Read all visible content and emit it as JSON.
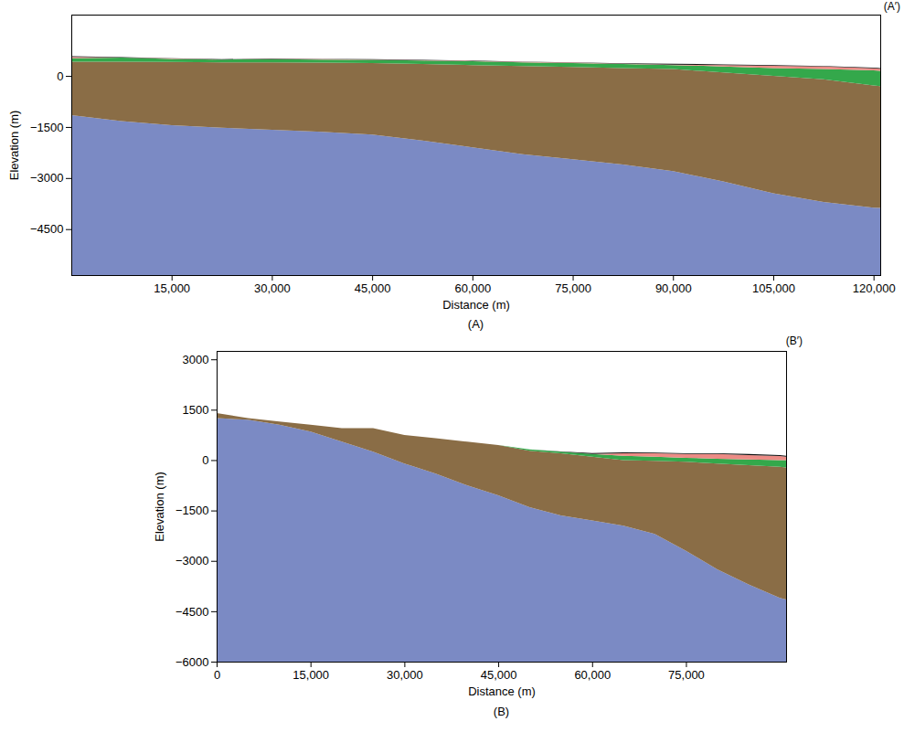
{
  "chart_data": [
    {
      "type": "area",
      "corner_label": "(A′)",
      "panel_label": "(A)",
      "x_label": "Distance (m)",
      "y_label": "Elevation (m)",
      "xlim": [
        0,
        121000
      ],
      "xticks": [
        {
          "value": 15000,
          "label": "15,000"
        },
        {
          "value": 30000,
          "label": "30,000"
        },
        {
          "value": 45000,
          "label": "45,000"
        },
        {
          "value": 60000,
          "label": "60,000"
        },
        {
          "value": 75000,
          "label": "75,000"
        },
        {
          "value": 90000,
          "label": "90,000"
        },
        {
          "value": 105000,
          "label": "105,000"
        },
        {
          "value": 120000,
          "label": "120,000"
        }
      ],
      "ylim": [
        -5850,
        1800
      ],
      "yticks": [
        0,
        {
          "value": -1500,
          "label": "−1500"
        },
        {
          "value": -3000,
          "label": "−3000"
        },
        {
          "value": -4500,
          "label": "−4500"
        }
      ],
      "x": [
        0,
        7500,
        15000,
        22500,
        30000,
        37500,
        45000,
        52500,
        60000,
        67500,
        75000,
        82500,
        90000,
        97500,
        105000,
        112500,
        120000,
        121000
      ],
      "series": [
        {
          "color": "#7b8ac4",
          "values": [
            -1150,
            -1330,
            -1450,
            -1520,
            -1580,
            -1640,
            -1720,
            -1900,
            -2100,
            -2300,
            -2450,
            -2600,
            -2800,
            -3100,
            -3450,
            -3700,
            -3870,
            -3880
          ]
        },
        {
          "color": "#8a6d46",
          "values": [
            420,
            420,
            410,
            400,
            400,
            390,
            380,
            350,
            320,
            290,
            260,
            230,
            200,
            100,
            0,
            -100,
            -280,
            -300
          ]
        },
        {
          "color": "#34a84b",
          "values": [
            520,
            540,
            500,
            480,
            490,
            480,
            470,
            450,
            430,
            400,
            380,
            350,
            320,
            280,
            230,
            200,
            160,
            150
          ]
        },
        {
          "color": "#ec8b85",
          "values": [
            560,
            540,
            510,
            480,
            500,
            490,
            480,
            460,
            440,
            410,
            390,
            360,
            330,
            320,
            300,
            280,
            220,
            210
          ]
        },
        {
          "color": "#111111",
          "values": [
            580,
            550,
            520,
            490,
            510,
            500,
            490,
            470,
            450,
            420,
            400,
            370,
            360,
            340,
            320,
            290,
            240,
            230
          ]
        }
      ]
    },
    {
      "type": "area",
      "corner_label": "(B′)",
      "panel_label": "(B)",
      "x_label": "Distance (m)",
      "y_label": "Elevation (m)",
      "xlim": [
        0,
        91000
      ],
      "xticks": [
        0,
        {
          "value": 15000,
          "label": "15,000"
        },
        {
          "value": 30000,
          "label": "30,000"
        },
        {
          "value": 45000,
          "label": "45,000"
        },
        {
          "value": 60000,
          "label": "60,000"
        },
        {
          "value": 75000,
          "label": "75,000"
        }
      ],
      "ylim": [
        -6000,
        3250
      ],
      "yticks": [
        3000,
        1500,
        0,
        {
          "value": -1500,
          "label": "−1500"
        },
        {
          "value": -3000,
          "label": "−3000"
        },
        {
          "value": -4500,
          "label": "−4500"
        },
        {
          "value": -6000,
          "label": "−6000"
        }
      ],
      "x": [
        0,
        5000,
        10000,
        15000,
        20000,
        25000,
        30000,
        35000,
        40000,
        45000,
        50000,
        55000,
        60000,
        65000,
        70000,
        75000,
        80000,
        85000,
        90000,
        91000
      ],
      "series": [
        {
          "color": "#7b8ac4",
          "values": [
            1250,
            1200,
            1050,
            850,
            550,
            250,
            -100,
            -400,
            -750,
            -1050,
            -1400,
            -1650,
            -1800,
            -1950,
            -2200,
            -2700,
            -3250,
            -3700,
            -4100,
            -4150
          ]
        },
        {
          "color": "#8a6d46",
          "values": [
            1400,
            1250,
            1150,
            1050,
            950,
            950,
            750,
            650,
            550,
            450,
            280,
            200,
            100,
            0,
            -20,
            -50,
            -100,
            -150,
            -200,
            -220
          ]
        },
        {
          "color": "#34a84b",
          "values": [
            1400,
            1250,
            1150,
            1050,
            950,
            950,
            750,
            650,
            550,
            450,
            320,
            250,
            180,
            130,
            100,
            70,
            40,
            20,
            0,
            0
          ]
        },
        {
          "color": "#ec8b85",
          "values": [
            1400,
            1250,
            1150,
            1050,
            950,
            950,
            750,
            650,
            550,
            450,
            320,
            250,
            180,
            200,
            200,
            180,
            180,
            150,
            120,
            100
          ]
        },
        {
          "color": "#111111",
          "values": [
            1400,
            1250,
            1150,
            1050,
            950,
            950,
            750,
            650,
            550,
            450,
            320,
            260,
            210,
            230,
            220,
            200,
            200,
            180,
            150,
            130
          ]
        }
      ]
    }
  ]
}
